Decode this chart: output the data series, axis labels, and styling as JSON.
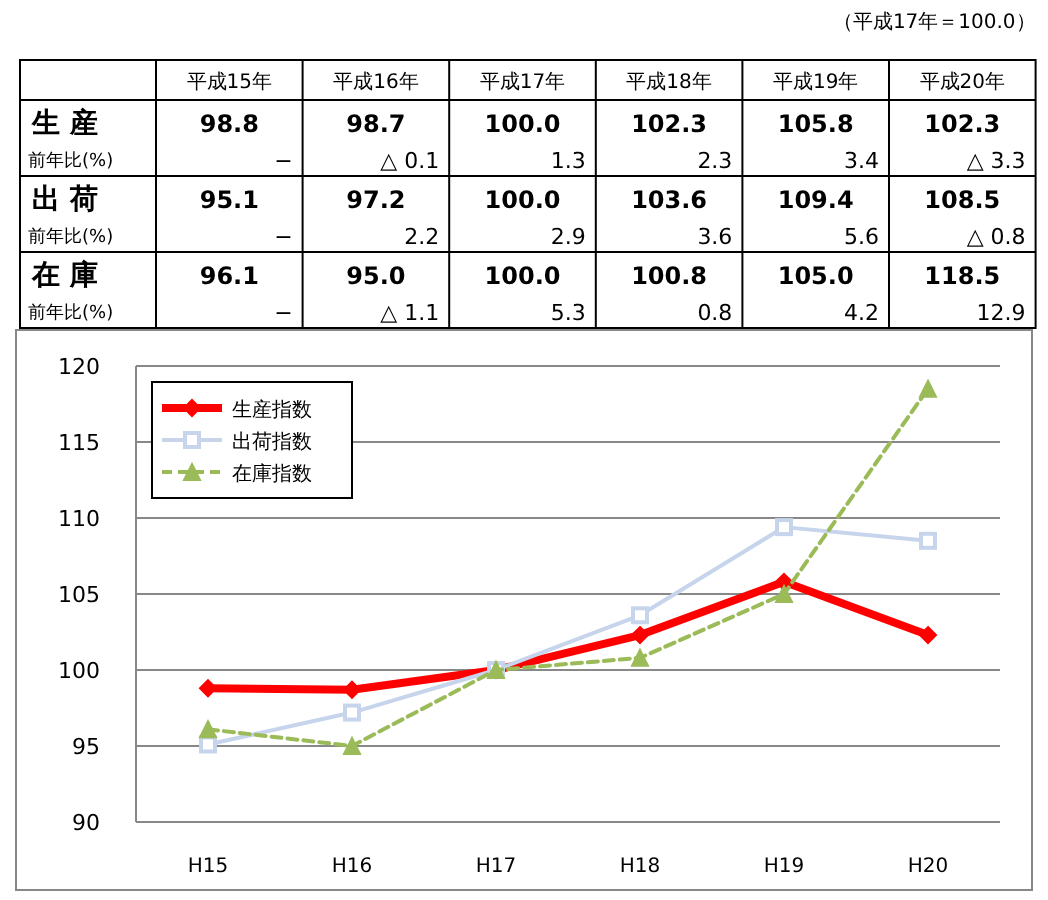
{
  "chart_data": {
    "type": "line",
    "categories": [
      "H15",
      "H16",
      "H17",
      "H18",
      "H19",
      "H20"
    ],
    "series": [
      {
        "name": "生産指数",
        "color": "#ff0000",
        "marker": "diamond",
        "line_style": "solid",
        "values": [
          98.8,
          98.7,
          100.0,
          102.3,
          105.8,
          102.3
        ],
        "value_labels": [
          "98.8",
          "98.7",
          "100.0",
          "102.3",
          "105.8",
          "102.3"
        ]
      },
      {
        "name": "出荷指数",
        "color": "#c6d4ec",
        "marker": "square",
        "line_style": "solid",
        "values": [
          95.1,
          97.2,
          100.0,
          103.6,
          109.4,
          108.5
        ],
        "value_labels": [
          "95.1",
          "97.2",
          "100.0",
          "103.6",
          "109.4",
          "108.5"
        ]
      },
      {
        "name": "在庫指数",
        "color": "#9bbb59",
        "marker": "triangle",
        "line_style": "dashed",
        "values": [
          96.1,
          95.0,
          100.0,
          100.8,
          105.0,
          118.5
        ],
        "value_labels": [
          "96.1",
          "95.0",
          "100.0",
          "100.8",
          "105.0",
          "118.5"
        ]
      }
    ],
    "ylim": [
      90,
      120
    ],
    "yticks": [
      90,
      95,
      100,
      105,
      110,
      115,
      120
    ],
    "grid": "y",
    "legend": "top left",
    "annotations": [
      "（平成17年＝100.0）",
      "平成15年",
      "平成16年",
      "平成17年",
      "平成18年",
      "平成19年",
      "平成20年",
      "生 産",
      "前年比(%)",
      "−",
      "△ 0.1",
      "1.3",
      "2.3",
      "3.4",
      "△ 3.3",
      "出 荷",
      "前年比(%)",
      "−",
      "2.2",
      "2.9",
      "3.6",
      "5.6",
      "△ 0.8",
      "在 庫",
      "前年比(%)",
      "−",
      "△ 1.1",
      "5.3",
      "0.8",
      "4.2",
      "12.9"
    ]
  }
}
